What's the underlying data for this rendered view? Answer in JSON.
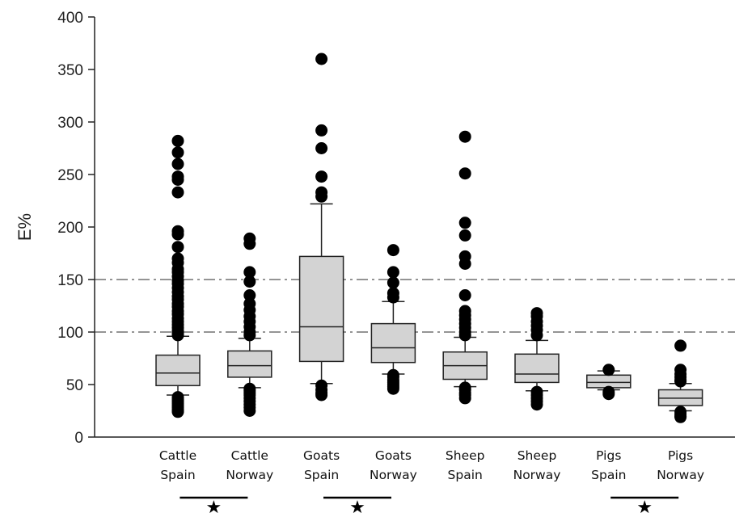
{
  "chart_data": {
    "type": "box",
    "ylabel": "E%",
    "ylim": [
      0,
      400
    ],
    "yticks": [
      "0",
      "50",
      "100",
      "150",
      "200",
      "250",
      "300",
      "350",
      "400"
    ],
    "ytick_values": [
      0,
      50,
      100,
      150,
      200,
      250,
      300,
      350,
      400
    ],
    "reference_lines": [
      100,
      150
    ],
    "reference_line_style": "dash-dot",
    "box_fill": "#d3d3d3",
    "categories": [
      {
        "line1": "Cattle",
        "line2": "Spain",
        "whisker_low": 40,
        "q1": 49,
        "median": 61,
        "q3": 78,
        "whisker_high": 96,
        "outliers": [
          282,
          271,
          260,
          248,
          245,
          233,
          196,
          193,
          181,
          170,
          166,
          160,
          157,
          153,
          149,
          146,
          142,
          138,
          134,
          131,
          127,
          124,
          120,
          117,
          113,
          110,
          107,
          104,
          101,
          99,
          97,
          38,
          36,
          34,
          32,
          30,
          28,
          26,
          25,
          24
        ]
      },
      {
        "line1": "Cattle",
        "line2": "Norway",
        "whisker_low": 47,
        "q1": 57,
        "median": 68,
        "q3": 82,
        "whisker_high": 94,
        "outliers": [
          189,
          184,
          157,
          148,
          135,
          127,
          121,
          115,
          110,
          105,
          100,
          97,
          46,
          44,
          42,
          40,
          37,
          34,
          31,
          28,
          25
        ]
      },
      {
        "line1": "Goats",
        "line2": "Spain",
        "whisker_low": 51,
        "q1": 72,
        "median": 105,
        "q3": 172,
        "whisker_high": 222,
        "outliers": [
          360,
          292,
          275,
          248,
          233,
          229,
          49,
          45,
          42,
          40
        ]
      },
      {
        "line1": "Goats",
        "line2": "Norway",
        "whisker_low": 60,
        "q1": 71,
        "median": 85,
        "q3": 108,
        "whisker_high": 129,
        "outliers": [
          178,
          157,
          147,
          137,
          133,
          59,
          57,
          54,
          52,
          50,
          48,
          46
        ]
      },
      {
        "line1": "Sheep",
        "line2": "Spain",
        "whisker_low": 48,
        "q1": 55,
        "median": 68,
        "q3": 81,
        "whisker_high": 95,
        "outliers": [
          286,
          251,
          204,
          192,
          172,
          165,
          135,
          120,
          116,
          112,
          108,
          104,
          100,
          97,
          47,
          45,
          42,
          40,
          37
        ]
      },
      {
        "line1": "Sheep",
        "line2": "Norway",
        "whisker_low": 44,
        "q1": 52,
        "median": 60,
        "q3": 79,
        "whisker_high": 92,
        "outliers": [
          118,
          115,
          110,
          106,
          102,
          97,
          43,
          40,
          37,
          34,
          31
        ]
      },
      {
        "line1": "Pigs",
        "line2": "Spain",
        "whisker_low": 45,
        "q1": 47,
        "median": 52,
        "q3": 59,
        "whisker_high": 63,
        "outliers": [
          64,
          43,
          41
        ]
      },
      {
        "line1": "Pigs",
        "line2": "Norway",
        "whisker_low": 25,
        "q1": 30,
        "median": 37,
        "q3": 45,
        "whisker_high": 51,
        "outliers": [
          87,
          64,
          60,
          57,
          54,
          53,
          24,
          22,
          20,
          19
        ]
      }
    ],
    "significance_markers": [
      {
        "from_category": 0,
        "to_category": 1,
        "symbol": "★"
      },
      {
        "from_category": 2,
        "to_category": 3,
        "symbol": "★"
      },
      {
        "from_category": 6,
        "to_category": 7,
        "symbol": "★"
      }
    ]
  }
}
